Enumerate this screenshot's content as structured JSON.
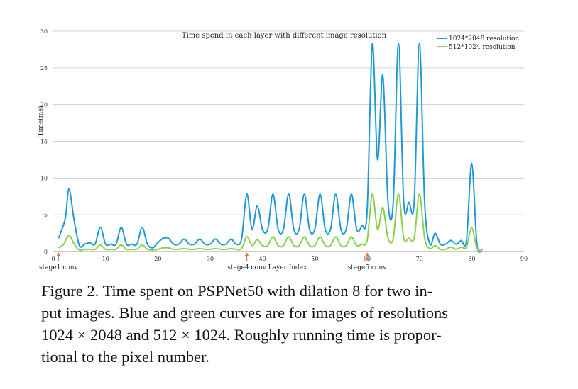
{
  "chart_data": {
    "type": "line",
    "title": "Time spend  in each layer  with different image resolution",
    "xlabel": "Layer Index",
    "ylabel": "Time(ms)",
    "xlim": [
      0,
      90
    ],
    "ylim": [
      0,
      30
    ],
    "xticks": [
      0,
      10,
      20,
      30,
      40,
      50,
      60,
      70,
      80,
      90
    ],
    "yticks": [
      0,
      5,
      10,
      15,
      20,
      25,
      30
    ],
    "grid": "horizontal",
    "legend_position": "top-right",
    "annotations": [
      {
        "x": 1,
        "text": "stage1 conv"
      },
      {
        "x": 37,
        "text": "stage4 conv"
      },
      {
        "x": 60,
        "text": "stage5 conv"
      }
    ],
    "series": [
      {
        "name": "1024*2048 resolution",
        "color": "#1f9ad6",
        "points": [
          [
            1,
            1.8
          ],
          [
            2.3,
            4.5
          ],
          [
            3,
            8.5
          ],
          [
            4,
            4.2
          ],
          [
            5,
            0.8
          ],
          [
            6,
            1.0
          ],
          [
            7,
            1.2
          ],
          [
            8,
            1.0
          ],
          [
            9,
            3.3
          ],
          [
            10,
            1.0
          ],
          [
            11,
            1.0
          ],
          [
            12,
            1.0
          ],
          [
            13,
            3.3
          ],
          [
            14,
            1.0
          ],
          [
            15,
            1.0
          ],
          [
            16,
            1.0
          ],
          [
            17,
            3.3
          ],
          [
            18,
            1.0
          ],
          [
            19,
            0.5
          ],
          [
            20,
            1.2
          ],
          [
            21,
            1.8
          ],
          [
            22,
            1.8
          ],
          [
            23,
            1.0
          ],
          [
            24,
            1.0
          ],
          [
            25,
            1.7
          ],
          [
            26,
            1.0
          ],
          [
            27,
            1.0
          ],
          [
            28,
            1.7
          ],
          [
            29,
            1.0
          ],
          [
            30,
            1.0
          ],
          [
            31,
            1.7
          ],
          [
            32,
            1.0
          ],
          [
            33,
            1.0
          ],
          [
            34,
            1.7
          ],
          [
            35,
            1.0
          ],
          [
            36,
            1.7
          ],
          [
            37,
            7.8
          ],
          [
            38,
            3.0
          ],
          [
            39,
            6.2
          ],
          [
            40,
            3.0
          ],
          [
            41,
            3.0
          ],
          [
            42,
            7.8
          ],
          [
            43,
            3.0
          ],
          [
            44,
            3.0
          ],
          [
            45,
            7.8
          ],
          [
            46,
            3.0
          ],
          [
            47,
            3.0
          ],
          [
            48,
            7.8
          ],
          [
            49,
            3.0
          ],
          [
            50,
            3.0
          ],
          [
            51,
            7.8
          ],
          [
            52,
            3.0
          ],
          [
            53,
            3.0
          ],
          [
            54,
            7.8
          ],
          [
            55,
            3.0
          ],
          [
            56,
            3.0
          ],
          [
            57,
            7.8
          ],
          [
            58,
            3.0
          ],
          [
            59,
            3.5
          ],
          [
            60,
            5.5
          ],
          [
            61,
            28.3
          ],
          [
            62,
            12.5
          ],
          [
            63,
            24.0
          ],
          [
            64,
            6.7
          ],
          [
            65,
            6.7
          ],
          [
            66,
            28.3
          ],
          [
            67,
            6.7
          ],
          [
            68,
            6.7
          ],
          [
            69,
            6.7
          ],
          [
            70,
            28.3
          ],
          [
            71,
            6.7
          ],
          [
            72,
            1.0
          ],
          [
            73,
            2.5
          ],
          [
            74,
            1.0
          ],
          [
            75,
            1.0
          ],
          [
            76,
            1.5
          ],
          [
            77,
            1.0
          ],
          [
            78,
            1.5
          ],
          [
            79,
            1.5
          ],
          [
            80,
            12.0
          ],
          [
            81,
            1.0
          ],
          [
            82,
            0.2
          ]
        ]
      },
      {
        "name": "512*1024 resolution",
        "color": "#8ccf4d",
        "points": [
          [
            1,
            0.5
          ],
          [
            2,
            1.0
          ],
          [
            3,
            2.2
          ],
          [
            4,
            1.0
          ],
          [
            5,
            0.2
          ],
          [
            6,
            0.3
          ],
          [
            7,
            0.3
          ],
          [
            8,
            0.3
          ],
          [
            9,
            0.9
          ],
          [
            10,
            0.3
          ],
          [
            11,
            0.3
          ],
          [
            12,
            0.3
          ],
          [
            13,
            0.9
          ],
          [
            14,
            0.3
          ],
          [
            15,
            0.3
          ],
          [
            16,
            0.3
          ],
          [
            17,
            0.9
          ],
          [
            18,
            0.3
          ],
          [
            19,
            0.2
          ],
          [
            20,
            0.3
          ],
          [
            21,
            0.5
          ],
          [
            22,
            0.5
          ],
          [
            23,
            0.3
          ],
          [
            24,
            0.3
          ],
          [
            25,
            0.4
          ],
          [
            26,
            0.3
          ],
          [
            27,
            0.3
          ],
          [
            28,
            0.4
          ],
          [
            29,
            0.3
          ],
          [
            30,
            0.3
          ],
          [
            31,
            0.4
          ],
          [
            32,
            0.3
          ],
          [
            33,
            0.3
          ],
          [
            34,
            0.4
          ],
          [
            35,
            0.3
          ],
          [
            36,
            0.4
          ],
          [
            37,
            2.0
          ],
          [
            38,
            0.8
          ],
          [
            39,
            1.6
          ],
          [
            40,
            0.8
          ],
          [
            41,
            0.8
          ],
          [
            42,
            2.0
          ],
          [
            43,
            0.8
          ],
          [
            44,
            0.8
          ],
          [
            45,
            2.0
          ],
          [
            46,
            0.8
          ],
          [
            47,
            0.8
          ],
          [
            48,
            2.0
          ],
          [
            49,
            0.8
          ],
          [
            50,
            0.8
          ],
          [
            51,
            2.0
          ],
          [
            52,
            0.8
          ],
          [
            53,
            0.8
          ],
          [
            54,
            2.0
          ],
          [
            55,
            0.8
          ],
          [
            56,
            0.8
          ],
          [
            57,
            2.0
          ],
          [
            58,
            0.8
          ],
          [
            59,
            1.0
          ],
          [
            60,
            1.5
          ],
          [
            61,
            7.8
          ],
          [
            62,
            3.0
          ],
          [
            63,
            6.0
          ],
          [
            64,
            1.8
          ],
          [
            65,
            1.8
          ],
          [
            66,
            7.8
          ],
          [
            67,
            1.8
          ],
          [
            68,
            1.8
          ],
          [
            69,
            1.8
          ],
          [
            70,
            7.8
          ],
          [
            71,
            1.8
          ],
          [
            72,
            0.4
          ],
          [
            73,
            0.8
          ],
          [
            74,
            0.3
          ],
          [
            75,
            0.3
          ],
          [
            76,
            0.6
          ],
          [
            77,
            0.3
          ],
          [
            78,
            0.6
          ],
          [
            79,
            0.6
          ],
          [
            80,
            3.2
          ],
          [
            81,
            0.5
          ],
          [
            82,
            0.1
          ]
        ]
      }
    ]
  },
  "caption": {
    "line1": "Figure 2. Time spent on PSPNet50 with dilation 8 for two in-",
    "line2": "put images.  Blue and green curves are for images of resolutions",
    "line3": "1024 × 2048 and 512 × 1024. Roughly running time is propor-",
    "line4": "tional to the pixel number."
  }
}
